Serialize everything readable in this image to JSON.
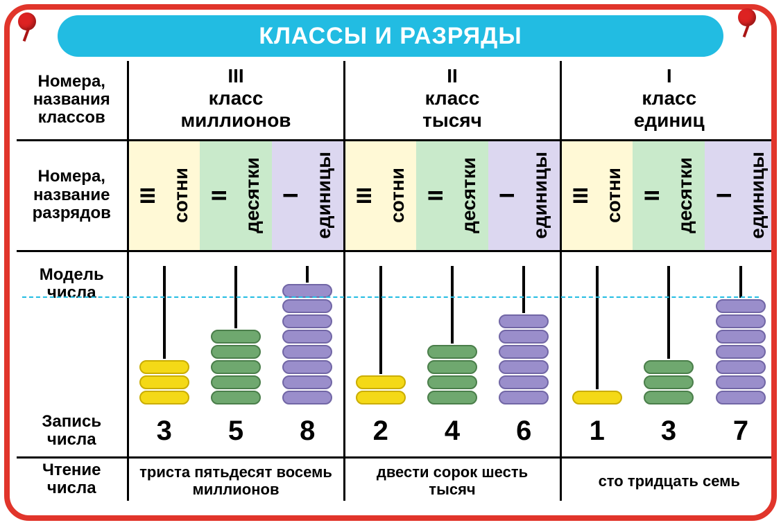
{
  "title": "КЛАССЫ И РАЗРЯДЫ",
  "row_labels": {
    "classes": "Номера,\nназвания\nклассов",
    "digits": "Номера,\nназвание\nразрядов",
    "model": "Модель\nчисла",
    "written": "Запись\nчисла",
    "reading": "Чтение\nчисла"
  },
  "class_groups": [
    {
      "roman": "III",
      "name": "класс\nмиллионов",
      "reading": "триста пятьдесят восемь\nмиллионов"
    },
    {
      "roman": "II",
      "name": "класс\nтысяч",
      "reading": "двести сорок шесть\nтысяч"
    },
    {
      "roman": "I",
      "name": "класс\nединиц",
      "reading": "сто тридцать семь"
    }
  ],
  "digit_names": [
    {
      "roman": "III",
      "label": "сотни",
      "bg": "bg-yellow",
      "bead": "bead-yellow"
    },
    {
      "roman": "II",
      "label": "десятки",
      "bg": "bg-green",
      "bead": "bead-green"
    },
    {
      "roman": "I",
      "label": "единицы",
      "bg": "bg-lilac",
      "bead": "bead-lilac"
    }
  ],
  "columns": [
    {
      "group": 0,
      "digit": 0,
      "value": 3
    },
    {
      "group": 0,
      "digit": 1,
      "value": 5
    },
    {
      "group": 0,
      "digit": 2,
      "value": 8
    },
    {
      "group": 1,
      "digit": 0,
      "value": 2
    },
    {
      "group": 1,
      "digit": 1,
      "value": 4
    },
    {
      "group": 1,
      "digit": 2,
      "value": 6
    },
    {
      "group": 2,
      "digit": 0,
      "value": 1
    },
    {
      "group": 2,
      "digit": 1,
      "value": 3
    },
    {
      "group": 2,
      "digit": 2,
      "value": 7
    }
  ],
  "style": {
    "frame_border_color": "#e1352b",
    "title_bg": "#22bce2",
    "title_color": "#ffffff",
    "dash_color": "#22bce2",
    "bg_colors": {
      "yellow": "#fff9d6",
      "green": "#c9eacb",
      "lilac": "#dcd7f0"
    },
    "bead_colors": {
      "yellow": {
        "fill": "#f4d917",
        "border": "#caad00"
      },
      "green": {
        "fill": "#6fa86f",
        "border": "#4a7e4a"
      },
      "lilac": {
        "fill": "#9a8ecb",
        "border": "#7166a5"
      }
    },
    "abacus_total_height": 200,
    "bead_height": 22,
    "bead_width": 72,
    "title_fontsize": 34,
    "rowlabel_fontsize": 24,
    "classhdr_fontsize": 28,
    "vertical_fontsize": 28,
    "digitval_fontsize": 40,
    "reading_fontsize": 22
  }
}
